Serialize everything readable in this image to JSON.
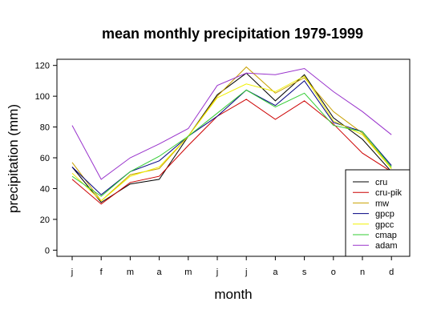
{
  "chart_data": {
    "type": "line",
    "title": "mean monthly precipitation 1979-1999",
    "xlabel": "month",
    "ylabel": "precipitation (mm)",
    "categories": [
      "j",
      "f",
      "m",
      "a",
      "m",
      "j",
      "j",
      "a",
      "s",
      "o",
      "n",
      "d"
    ],
    "yticks": [
      0,
      20,
      40,
      60,
      80,
      100,
      120
    ],
    "ylim": [
      -4,
      124
    ],
    "grid": false,
    "legend_position": "bottom-right",
    "series": [
      {
        "name": "cru",
        "color": "#000000",
        "values": [
          54,
          31,
          43,
          46,
          74,
          101,
          115,
          97,
          114,
          86,
          72,
          51
        ]
      },
      {
        "name": "cru-pik",
        "color": "#cc0000",
        "values": [
          46,
          30,
          44,
          48,
          68,
          87,
          98,
          85,
          97,
          82,
          63,
          51
        ]
      },
      {
        "name": "mw",
        "color": "#c8a000",
        "values": [
          57,
          32,
          49,
          53,
          74,
          100,
          119,
          102,
          112,
          90,
          76,
          53
        ]
      },
      {
        "name": "gpcp",
        "color": "#000080",
        "values": [
          54,
          36,
          51,
          58,
          74,
          87,
          104,
          94,
          110,
          83,
          77,
          55
        ]
      },
      {
        "name": "gpcc",
        "color": "#f0f000",
        "values": [
          50,
          32,
          48,
          54,
          74,
          99,
          108,
          103,
          113,
          84,
          75,
          53
        ]
      },
      {
        "name": "cmap",
        "color": "#33cc33",
        "values": [
          48,
          35,
          51,
          61,
          74,
          89,
          104,
          93,
          102,
          81,
          77,
          54
        ]
      },
      {
        "name": "adam",
        "color": "#9933cc",
        "values": [
          81,
          46,
          60,
          69,
          79,
          107,
          115,
          114,
          118,
          103,
          90,
          75
        ]
      }
    ]
  }
}
